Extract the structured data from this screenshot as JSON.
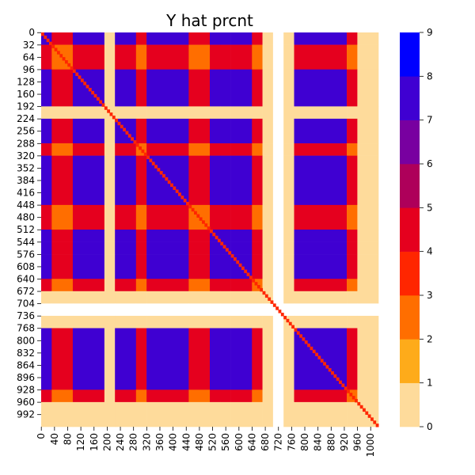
{
  "chart_data": {
    "type": "heatmap",
    "title": "Y hat prcnt",
    "xlabel": "",
    "ylabel": "",
    "matrix_size": 1024,
    "cell_size": 32,
    "x_ticks": [
      0,
      40,
      80,
      120,
      160,
      200,
      240,
      280,
      320,
      360,
      400,
      440,
      480,
      520,
      560,
      600,
      640,
      680,
      720,
      760,
      800,
      840,
      880,
      920,
      960,
      1000
    ],
    "y_ticks": [
      0,
      32,
      64,
      96,
      128,
      160,
      192,
      224,
      256,
      288,
      320,
      352,
      384,
      416,
      448,
      480,
      512,
      544,
      576,
      608,
      640,
      672,
      704,
      736,
      768,
      800,
      832,
      864,
      896,
      928,
      960,
      992
    ],
    "colorbar": {
      "min": 0,
      "max": 9,
      "ticks": [
        0,
        1,
        2,
        3,
        4,
        5,
        6,
        7,
        8,
        9
      ],
      "colors": [
        "#ffffff",
        "#fedb9b",
        "#feab1a",
        "#ff6e00",
        "#ff2600",
        "#e5001e",
        "#ae005a",
        "#7800a0",
        "#3f00d2",
        "#0000ff"
      ]
    },
    "block_boundaries": [
      0,
      32,
      96,
      192,
      224,
      288,
      320,
      448,
      512,
      544,
      576,
      640,
      672,
      704,
      736,
      768,
      928,
      960,
      1024
    ],
    "block_types": [
      "A",
      "B",
      "A",
      "C",
      "A",
      "B",
      "A",
      "B",
      "A",
      "A",
      "A",
      "B",
      "C",
      "D",
      "C",
      "A",
      "B",
      "C"
    ],
    "type_matrix": {
      "A": {
        "A": 8,
        "B": 5,
        "C": 1,
        "D": 0
      },
      "B": {
        "A": 5,
        "B": 3,
        "C": 1,
        "D": 0
      },
      "C": {
        "A": 1,
        "B": 1,
        "C": 1,
        "D": 0
      },
      "D": {
        "A": 0,
        "B": 0,
        "C": 0,
        "D": 0
      }
    },
    "diagonal_value": 4
  }
}
